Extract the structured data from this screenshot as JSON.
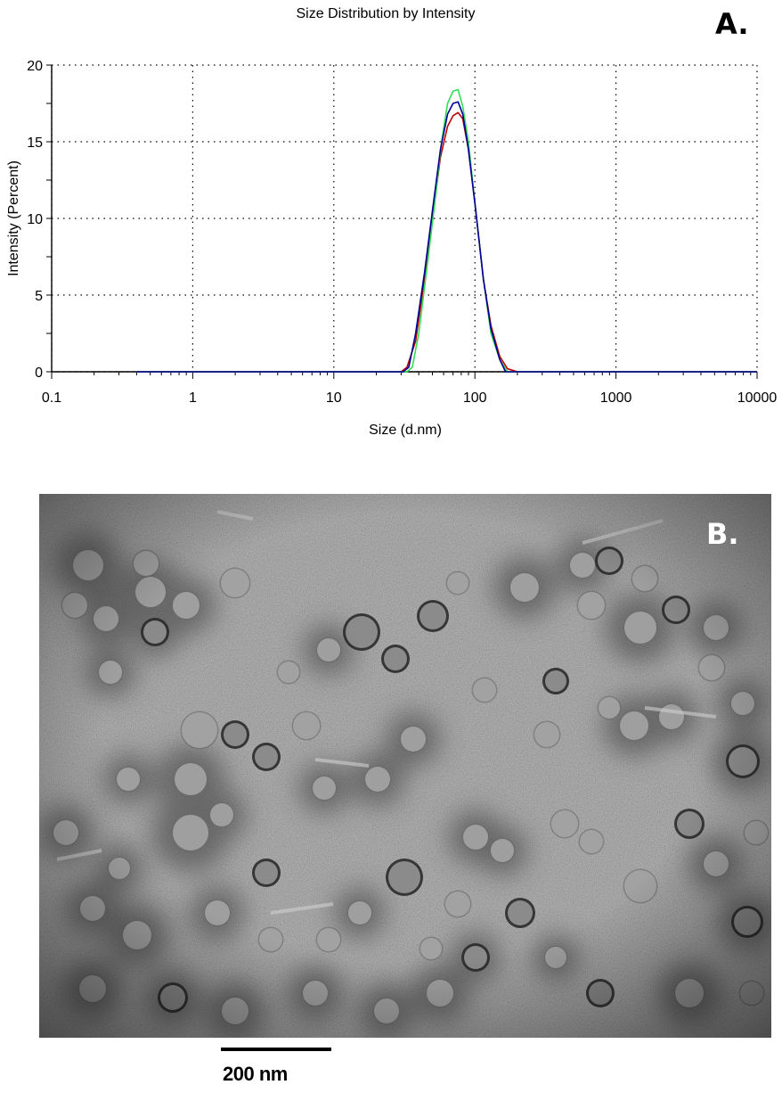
{
  "panel_a_label": "A.",
  "panel_b_label": "B.",
  "scale_bar_label": "200 nm",
  "chart_data": {
    "type": "line",
    "title": "Size Distribution by Intensity",
    "xlabel": "Size (d.nm)",
    "ylabel": "Intensity (Percent)",
    "xscale": "log",
    "xlim": [
      0.1,
      10000
    ],
    "ylim": [
      0,
      20
    ],
    "x_ticks": [
      "0.1",
      "1",
      "10",
      "100",
      "1000",
      "10000"
    ],
    "y_ticks": [
      "0",
      "5",
      "10",
      "15",
      "20"
    ],
    "grid": true,
    "legend": "none",
    "series": [
      {
        "color": "#c00000",
        "x": [
          0.4,
          30,
          33,
          38,
          44,
          50,
          57,
          64,
          70,
          76,
          82,
          90,
          100,
          115,
          130,
          150,
          170,
          200,
          10000
        ],
        "y": [
          0,
          0,
          0.3,
          2,
          6,
          10,
          14,
          16,
          16.7,
          16.9,
          16.5,
          14.5,
          11,
          6,
          3,
          1,
          0.2,
          0,
          0
        ]
      },
      {
        "color": "#33dd55",
        "x": [
          0.4,
          33,
          36,
          40,
          46,
          52,
          58,
          64,
          70,
          76,
          82,
          90,
          100,
          115,
          130,
          150,
          170,
          10000
        ],
        "y": [
          0,
          0,
          0.3,
          2.5,
          7,
          11,
          15,
          17.5,
          18.3,
          18.4,
          17.3,
          15,
          11,
          6,
          2.5,
          0.8,
          0,
          0
        ]
      },
      {
        "color": "#000099",
        "x": [
          0.4,
          31,
          34,
          38,
          44,
          50,
          57,
          64,
          70,
          76,
          82,
          90,
          100,
          115,
          130,
          150,
          165,
          10000
        ],
        "y": [
          0,
          0,
          0.3,
          2.5,
          6.5,
          10.5,
          14.5,
          16.8,
          17.5,
          17.6,
          16.8,
          14.5,
          11,
          6,
          2.8,
          0.8,
          0,
          0
        ]
      }
    ]
  }
}
